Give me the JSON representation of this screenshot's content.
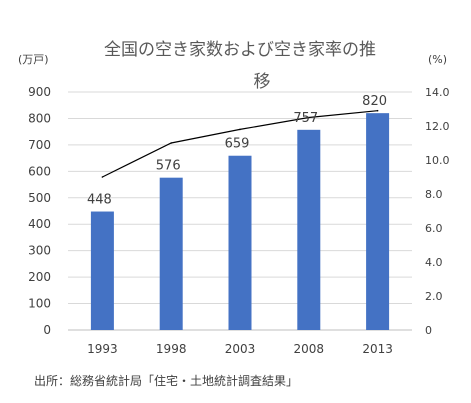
{
  "chart_data": {
    "type": "bar",
    "title_line1": "全国の空き家数および空き家率の推",
    "title_line2": "移",
    "left_unit": "(万戸)",
    "right_unit": "(%)",
    "categories": [
      "1993",
      "1998",
      "2003",
      "2008",
      "2013"
    ],
    "series": [
      {
        "type": "bar",
        "axis": "left",
        "values": [
          448,
          576,
          659,
          757,
          820
        ],
        "data_labels": [
          "448",
          "576",
          "659",
          "757",
          "820"
        ],
        "color": "#4472C4"
      },
      {
        "type": "line",
        "axis": "right",
        "values": [
          9.0,
          11.0,
          11.8,
          12.5,
          12.9
        ],
        "color": "#000000"
      }
    ],
    "left_axis": {
      "min": 0,
      "max": 900,
      "ticks": [
        "0",
        "100",
        "200",
        "300",
        "400",
        "500",
        "600",
        "700",
        "800",
        "900"
      ]
    },
    "right_axis": {
      "min": 0,
      "max": 14,
      "ticks": [
        "0",
        "2.0",
        "4.0",
        "6.0",
        "8.0",
        "10.0",
        "12.0",
        "14.0"
      ]
    },
    "grid": true,
    "legend": "none"
  },
  "source": "出所：総務省統計局「住宅・土地統計調査結果」"
}
